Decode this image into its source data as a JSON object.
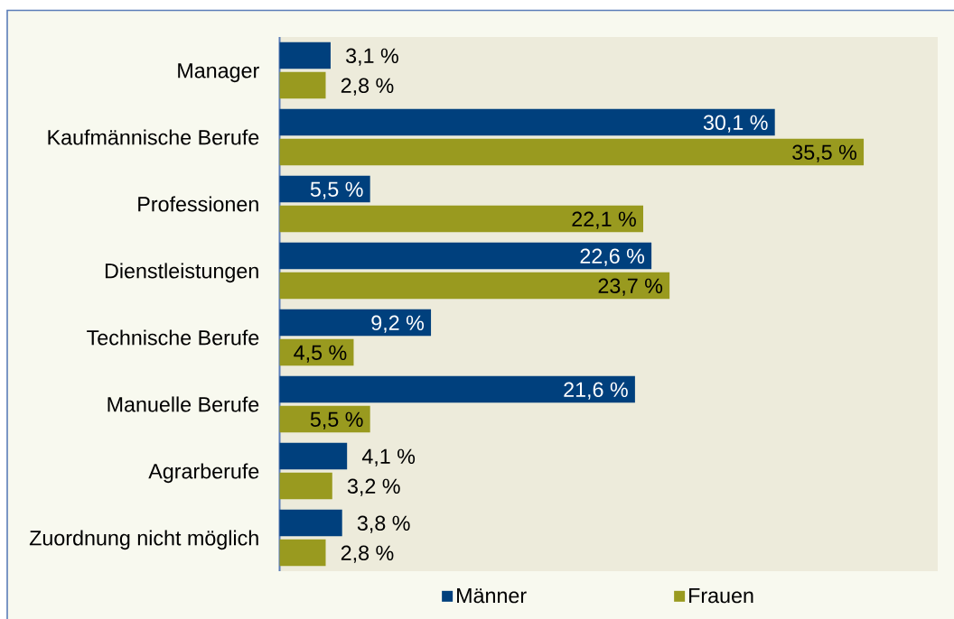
{
  "chart_data": {
    "type": "bar",
    "orientation": "horizontal",
    "categories": [
      "Manager",
      "Kaufmännische Berufe",
      "Professionen",
      "Dienstleistungen",
      "Technische Berufe",
      "Manuelle Berufe",
      "Agrarberufe",
      "Zuordnung nicht möglich"
    ],
    "series": [
      {
        "name": "Männer",
        "color": "#00407d",
        "values": [
          3.1,
          30.1,
          5.5,
          22.6,
          9.2,
          21.6,
          4.1,
          3.8
        ],
        "value_labels": [
          "3,1 %",
          "30,1 %",
          "5,5 %",
          "22,6 %",
          "9,2 %",
          "21,6 %",
          "4,1 %",
          "3,8 %"
        ]
      },
      {
        "name": "Frauen",
        "color": "#999a1f",
        "values": [
          2.8,
          35.5,
          22.1,
          23.7,
          4.5,
          5.5,
          3.2,
          2.8
        ],
        "value_labels": [
          "2,8 %",
          "35,5 %",
          "22,1 %",
          "23,7 %",
          "4,5 %",
          "5,5 %",
          "3,2 %",
          "2,8 %"
        ]
      }
    ],
    "legend": "bottom",
    "tick_labels": "y"
  }
}
